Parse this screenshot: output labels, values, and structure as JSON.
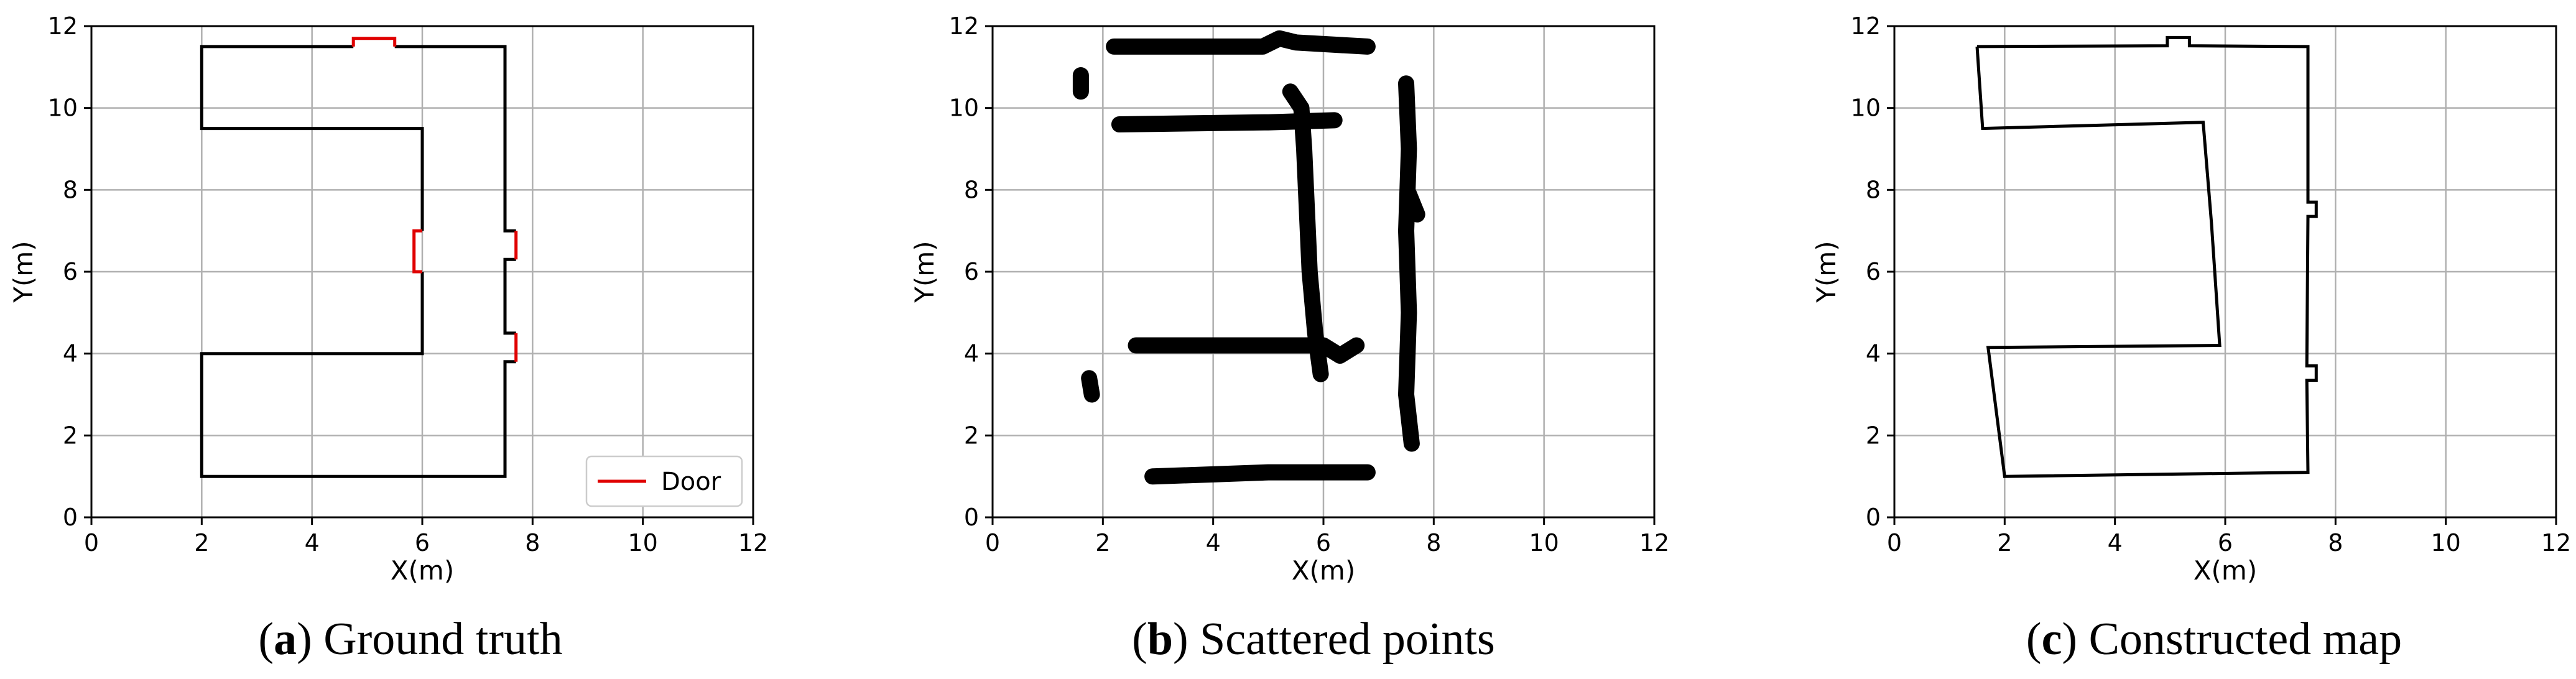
{
  "chart_data": [
    {
      "type": "line",
      "caption_letter": "a",
      "caption_text": "Ground truth",
      "xlabel": "X(m)",
      "ylabel": "Y(m)",
      "xlim": [
        0,
        12
      ],
      "ylim": [
        0,
        12
      ],
      "xticks": [
        "0",
        "2",
        "4",
        "6",
        "8",
        "10",
        "12"
      ],
      "yticks": [
        "0",
        "2",
        "4",
        "6",
        "8",
        "10",
        "12"
      ],
      "grid": true,
      "legend": {
        "position": "bottom-right",
        "entries": [
          {
            "label": "Door",
            "color": "#e00000"
          }
        ]
      },
      "series": [
        {
          "role": "walls",
          "color": "#000000",
          "polylines": [
            [
              [
                4.75,
                11.5
              ],
              [
                2,
                11.5
              ],
              [
                2,
                9.5
              ],
              [
                6,
                9.5
              ],
              [
                6,
                7
              ]
            ],
            [
              [
                6,
                6
              ],
              [
                6,
                4
              ],
              [
                2,
                4
              ],
              [
                2,
                1
              ],
              [
                7.5,
                1
              ],
              [
                7.5,
                3.8
              ],
              [
                7.7,
                3.8
              ]
            ],
            [
              [
                7.7,
                4.5
              ],
              [
                7.5,
                4.5
              ],
              [
                7.5,
                6.3
              ],
              [
                7.7,
                6.3
              ]
            ],
            [
              [
                7.7,
                7
              ],
              [
                7.5,
                7
              ],
              [
                7.5,
                11.5
              ],
              [
                5.5,
                11.5
              ]
            ]
          ]
        },
        {
          "role": "doors",
          "name": "Door",
          "color": "#e00000",
          "polylines": [
            [
              [
                4.75,
                11.5
              ],
              [
                4.75,
                11.7
              ],
              [
                5.5,
                11.7
              ],
              [
                5.5,
                11.5
              ]
            ],
            [
              [
                6,
                7
              ],
              [
                5.85,
                7
              ],
              [
                5.85,
                6
              ],
              [
                6,
                6
              ]
            ],
            [
              [
                7.7,
                6.3
              ],
              [
                7.7,
                7
              ]
            ],
            [
              [
                7.7,
                3.8
              ],
              [
                7.7,
                4.5
              ]
            ]
          ]
        }
      ]
    },
    {
      "type": "scatter",
      "caption_letter": "b",
      "caption_text": "Scattered points",
      "xlabel": "X(m)",
      "ylabel": "Y(m)",
      "xlim": [
        0,
        12
      ],
      "ylim": [
        0,
        12
      ],
      "xticks": [
        "0",
        "2",
        "4",
        "6",
        "8",
        "10",
        "12"
      ],
      "yticks": [
        "0",
        "2",
        "4",
        "6",
        "8",
        "10",
        "12"
      ],
      "grid": true,
      "color": "#000000",
      "segments": [
        [
          [
            2.2,
            11.5
          ],
          [
            4.9,
            11.5
          ],
          [
            5.2,
            11.7
          ],
          [
            5.5,
            11.6
          ],
          [
            6.8,
            11.5
          ]
        ],
        [
          [
            2.3,
            9.6
          ],
          [
            5.0,
            9.65
          ],
          [
            6.2,
            9.7
          ]
        ],
        [
          [
            1.6,
            10.8
          ],
          [
            1.6,
            10.4
          ]
        ],
        [
          [
            5.4,
            10.4
          ],
          [
            5.6,
            10.0
          ],
          [
            5.65,
            9.0
          ],
          [
            5.75,
            6.0
          ],
          [
            5.85,
            4.5
          ],
          [
            5.95,
            3.5
          ]
        ],
        [
          [
            7.5,
            10.6
          ],
          [
            7.55,
            9.0
          ],
          [
            7.5,
            7.0
          ],
          [
            7.55,
            5.0
          ],
          [
            7.5,
            3.0
          ],
          [
            7.6,
            1.8
          ]
        ],
        [
          [
            7.55,
            7.9
          ],
          [
            7.7,
            7.4
          ]
        ],
        [
          [
            2.6,
            4.2
          ],
          [
            4.5,
            4.2
          ],
          [
            6.0,
            4.2
          ],
          [
            6.3,
            3.95
          ],
          [
            6.6,
            4.2
          ]
        ],
        [
          [
            1.75,
            3.4
          ],
          [
            1.8,
            3.0
          ]
        ],
        [
          [
            2.9,
            1.0
          ],
          [
            4.0,
            1.05
          ],
          [
            5.0,
            1.1
          ],
          [
            6.8,
            1.1
          ]
        ]
      ]
    },
    {
      "type": "line",
      "caption_letter": "c",
      "caption_text": "Constructed map",
      "xlabel": "X(m)",
      "ylabel": "Y(m)",
      "xlim": [
        0,
        12
      ],
      "ylim": [
        0,
        12
      ],
      "xticks": [
        "0",
        "2",
        "4",
        "6",
        "8",
        "10",
        "12"
      ],
      "yticks": [
        "0",
        "2",
        "4",
        "6",
        "8",
        "10",
        "12"
      ],
      "grid": true,
      "color": "#000000",
      "polylines": [
        [
          [
            1.5,
            11.5
          ],
          [
            4.95,
            11.52
          ],
          [
            4.95,
            11.72
          ],
          [
            5.35,
            11.72
          ],
          [
            5.35,
            11.52
          ],
          [
            7.5,
            11.5
          ],
          [
            7.5,
            7.7
          ],
          [
            7.65,
            7.7
          ],
          [
            7.65,
            7.35
          ],
          [
            7.5,
            7.35
          ],
          [
            7.48,
            3.7
          ],
          [
            7.65,
            3.7
          ],
          [
            7.65,
            3.35
          ],
          [
            7.48,
            3.35
          ],
          [
            7.5,
            1.1
          ],
          [
            2.0,
            1.0
          ],
          [
            1.7,
            4.15
          ],
          [
            5.9,
            4.2
          ],
          [
            5.75,
            7.2
          ],
          [
            5.6,
            9.65
          ],
          [
            1.6,
            9.5
          ],
          [
            1.5,
            11.5
          ]
        ]
      ]
    }
  ]
}
